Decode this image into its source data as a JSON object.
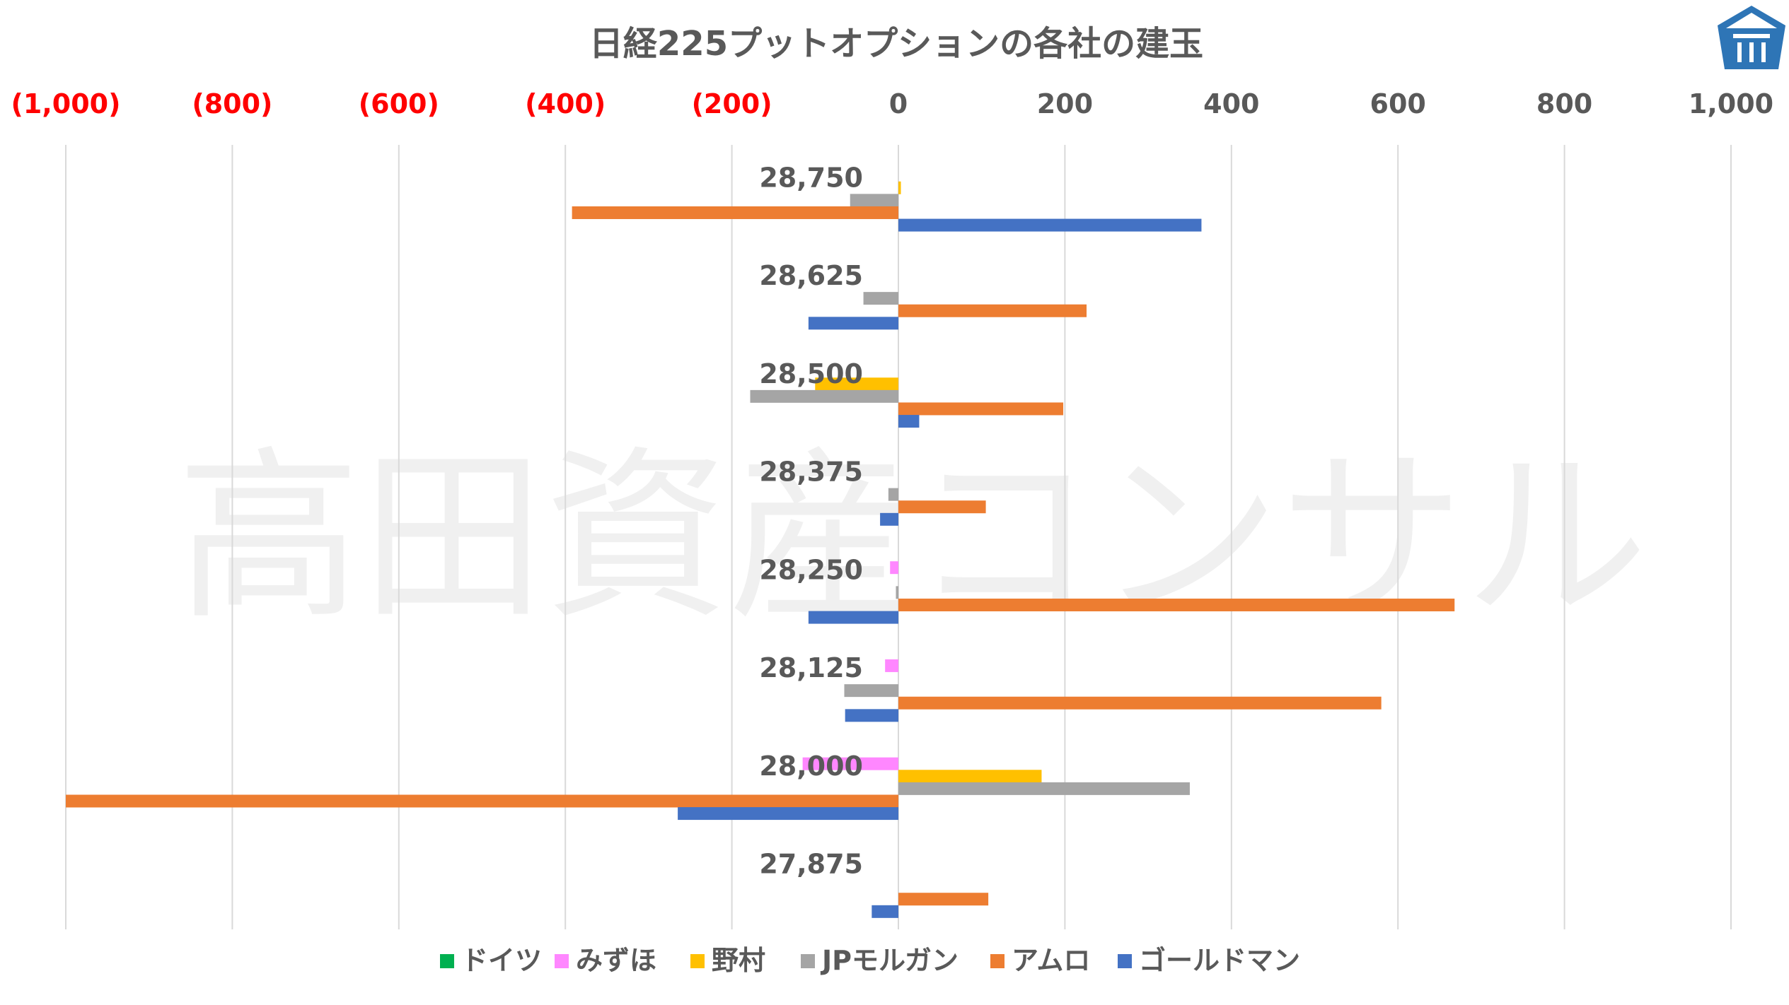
{
  "chart_data": {
    "type": "bar",
    "orientation": "horizontal",
    "title": "日経225プットオプションの各社の建玉",
    "xlim": [
      -1000,
      1000
    ],
    "x_ticks": [
      -1000,
      -800,
      -600,
      -400,
      -200,
      0,
      200,
      400,
      600,
      800,
      1000
    ],
    "x_tick_labels": [
      "(1,000)",
      "(800)",
      "(600)",
      "(400)",
      "(200)",
      "0",
      "200",
      "400",
      "600",
      "800",
      "1,000"
    ],
    "x_axis_position": "top",
    "negative_tick_color": "#FF0000",
    "positive_tick_color": "#595959",
    "grid": true,
    "legend_position": "bottom",
    "categories": [
      "28,750",
      "28,625",
      "28,500",
      "28,375",
      "28,250",
      "28,125",
      "28,000",
      "27,875"
    ],
    "series": [
      {
        "name": "ドイツ",
        "color": "#00B050",
        "values": [
          0,
          0,
          0,
          0,
          0,
          0,
          0,
          0
        ]
      },
      {
        "name": "みずほ",
        "color": "#FF87FF",
        "values": [
          0,
          0,
          0,
          0,
          -10,
          -16,
          -115,
          0
        ]
      },
      {
        "name": "野村",
        "color": "#FFC000",
        "values": [
          3,
          0,
          -100,
          0,
          0,
          0,
          172,
          0
        ]
      },
      {
        "name": "JPモルガン",
        "color": "#A5A5A5",
        "values": [
          -58,
          -42,
          -178,
          -12,
          -3,
          -65,
          350,
          0
        ]
      },
      {
        "name": "アムロ",
        "color": "#ED7D31",
        "values": [
          -392,
          226,
          198,
          105,
          668,
          580,
          -1000,
          108
        ]
      },
      {
        "name": "ゴールドマン",
        "color": "#4472C4",
        "values": [
          364,
          -108,
          25,
          -22,
          -108,
          -64,
          -265,
          -32
        ]
      }
    ]
  },
  "watermark": "高田資産コンサル",
  "logo_icon": "house-logo-icon"
}
